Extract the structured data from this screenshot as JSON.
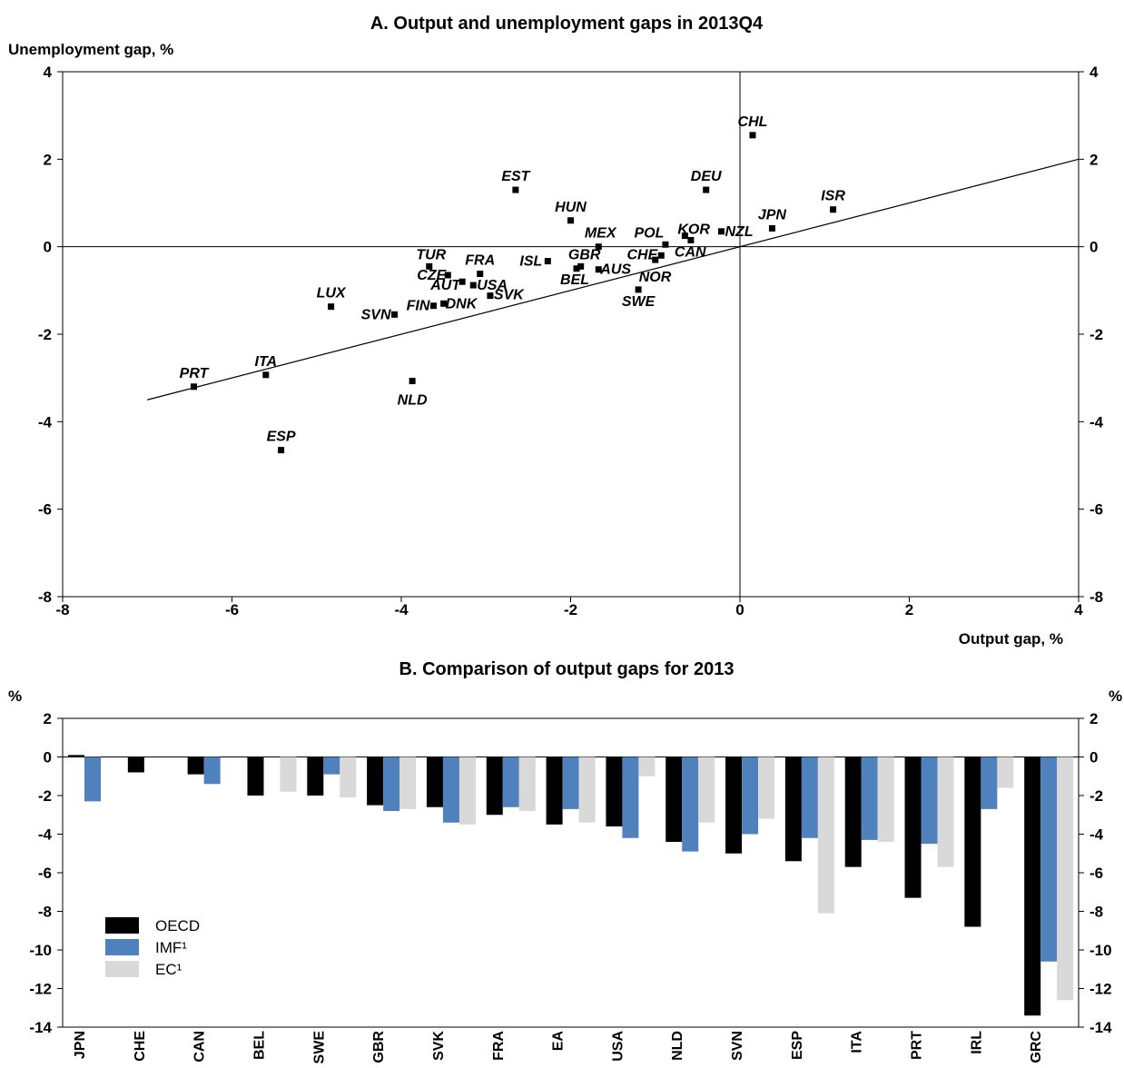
{
  "chart_data": [
    {
      "type": "scatter",
      "title": "A. Output and unemployment gaps in 2013Q4",
      "xlabel": "Output gap, %",
      "ylabel": "Unemployment gap, %",
      "xlim": [
        -8,
        4
      ],
      "ylim": [
        -8,
        4
      ],
      "xticks": [
        "-8",
        "-6",
        "-4",
        "-2",
        "0",
        "2",
        "4"
      ],
      "yticks": [
        "4",
        "2",
        "0",
        "-2",
        "-4",
        "-6",
        "-8"
      ],
      "trendline": [
        [
          -7,
          -3.5
        ],
        [
          4,
          2
        ]
      ],
      "points": [
        {
          "label": "CHL",
          "x": 0.15,
          "y": 2.55
        },
        {
          "label": "DEU",
          "x": -0.4,
          "y": 1.3
        },
        {
          "label": "EST",
          "x": -2.65,
          "y": 1.3
        },
        {
          "label": "ISR",
          "x": 1.1,
          "y": 0.85
        },
        {
          "label": "HUN",
          "x": -2.0,
          "y": 0.6
        },
        {
          "label": "JPN",
          "x": 0.38,
          "y": 0.42
        },
        {
          "label": "NZL",
          "x": -0.22,
          "y": 0.35
        },
        {
          "label": "KOR",
          "x": -0.65,
          "y": 0.25
        },
        {
          "label": "CAN",
          "x": -0.58,
          "y": 0.15
        },
        {
          "label": "POL",
          "x": -0.88,
          "y": 0.05
        },
        {
          "label": "MEX",
          "x": -1.67,
          "y": 0.0
        },
        {
          "label": "CHE",
          "x": -0.93,
          "y": -0.2
        },
        {
          "label": "NOR",
          "x": -1.0,
          "y": -0.3
        },
        {
          "label": "ISL",
          "x": -2.27,
          "y": -0.33
        },
        {
          "label": "GBR",
          "x": -1.88,
          "y": -0.45
        },
        {
          "label": "BEL",
          "x": -1.93,
          "y": -0.5
        },
        {
          "label": "AUS",
          "x": -1.67,
          "y": -0.52
        },
        {
          "label": "TUR",
          "x": -3.67,
          "y": -0.45
        },
        {
          "label": "FRA",
          "x": -3.07,
          "y": -0.62
        },
        {
          "label": "CZE",
          "x": -3.45,
          "y": -0.65
        },
        {
          "label": "AUT",
          "x": -3.28,
          "y": -0.8
        },
        {
          "label": "USA",
          "x": -3.15,
          "y": -0.88
        },
        {
          "label": "SWE",
          "x": -1.2,
          "y": -0.98
        },
        {
          "label": "SVK",
          "x": -2.95,
          "y": -1.12
        },
        {
          "label": "DNK",
          "x": -3.5,
          "y": -1.3
        },
        {
          "label": "FIN",
          "x": -3.62,
          "y": -1.35
        },
        {
          "label": "LUX",
          "x": -4.83,
          "y": -1.37
        },
        {
          "label": "SVN",
          "x": -4.08,
          "y": -1.55
        },
        {
          "label": "NLD",
          "x": -3.87,
          "y": -3.07
        },
        {
          "label": "ITA",
          "x": -5.6,
          "y": -2.93
        },
        {
          "label": "PRT",
          "x": -6.45,
          "y": -3.2
        },
        {
          "label": "ESP",
          "x": -5.42,
          "y": -4.65
        }
      ]
    },
    {
      "type": "bar",
      "title": "B. Comparison of output gaps for 2013",
      "ylabel": "%",
      "ylim": [
        -14,
        2
      ],
      "yticks": [
        "2",
        "0",
        "-2",
        "-4",
        "-6",
        "-8",
        "-10",
        "-12",
        "-14"
      ],
      "categories": [
        "JPN",
        "CHE",
        "CAN",
        "BEL",
        "SWE",
        "GBR",
        "SVK",
        "FRA",
        "EA",
        "USA",
        "NLD",
        "SVN",
        "ESP",
        "ITA",
        "PRT",
        "IRL",
        "GRC"
      ],
      "series": [
        {
          "name": "OECD",
          "color": "#000000",
          "values": [
            0.1,
            -0.8,
            -0.9,
            -2.0,
            -2.0,
            -2.5,
            -2.6,
            -3.0,
            -3.5,
            -3.6,
            -4.4,
            -5.0,
            -5.4,
            -5.7,
            -7.3,
            -8.8,
            -13.4
          ]
        },
        {
          "name": "IMF¹",
          "color": "#4f81bd",
          "values": [
            -2.3,
            null,
            -1.4,
            null,
            -0.9,
            -2.8,
            -3.4,
            -2.6,
            -2.7,
            -4.2,
            -4.9,
            -4.0,
            -4.2,
            -4.3,
            -4.5,
            -2.7,
            -10.6
          ]
        },
        {
          "name": "EC¹",
          "color": "#d9d9d9",
          "values": [
            null,
            null,
            null,
            -1.8,
            -2.1,
            -2.7,
            -3.5,
            -2.8,
            -3.4,
            -1.0,
            -3.4,
            -3.2,
            -8.1,
            -4.4,
            -5.7,
            -1.6,
            -12.6
          ]
        }
      ],
      "legend": "bottom-left"
    }
  ]
}
